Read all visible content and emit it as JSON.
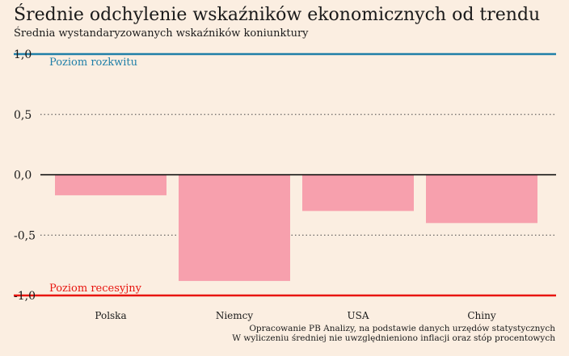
{
  "title": "Średnie odchylenie wskaźników ekonomicznych od trendu",
  "subtitle": "Średnia wystandaryzowanych wskaźników koniunktury",
  "source_lines": [
    "Opracowanie PB Analizy, na podstawie danych urzędów statystycznych",
    "W wyliczeniu średniej nie uwzględnieniono inflacji oraz stóp procentowych"
  ],
  "colors": {
    "bar": "#f7a0ad",
    "upper_line": "#1f7fa8",
    "lower_line": "#e8150f",
    "zero_line": "#000000",
    "grid": "#444444",
    "background": "#fbeee1"
  },
  "chart_data": {
    "type": "bar",
    "categories": [
      "Polska",
      "Niemcy",
      "USA",
      "Chiny"
    ],
    "values": [
      -0.17,
      -0.88,
      -0.3,
      -0.4
    ],
    "ylim": [
      -1.0,
      1.0
    ],
    "yticks": [
      1.0,
      0.5,
      0.0,
      -0.5,
      -1.0
    ],
    "ytick_labels": [
      "1,0",
      "0,5",
      "0,0",
      "-0,5",
      "-1,0"
    ],
    "grid": "dotted",
    "reference_lines": [
      {
        "value": 1.0,
        "label": "Poziom rozkwitu",
        "color": "#1f7fa8"
      },
      {
        "value": -1.0,
        "label": "Poziom recesyjny",
        "color": "#e8150f"
      }
    ]
  }
}
